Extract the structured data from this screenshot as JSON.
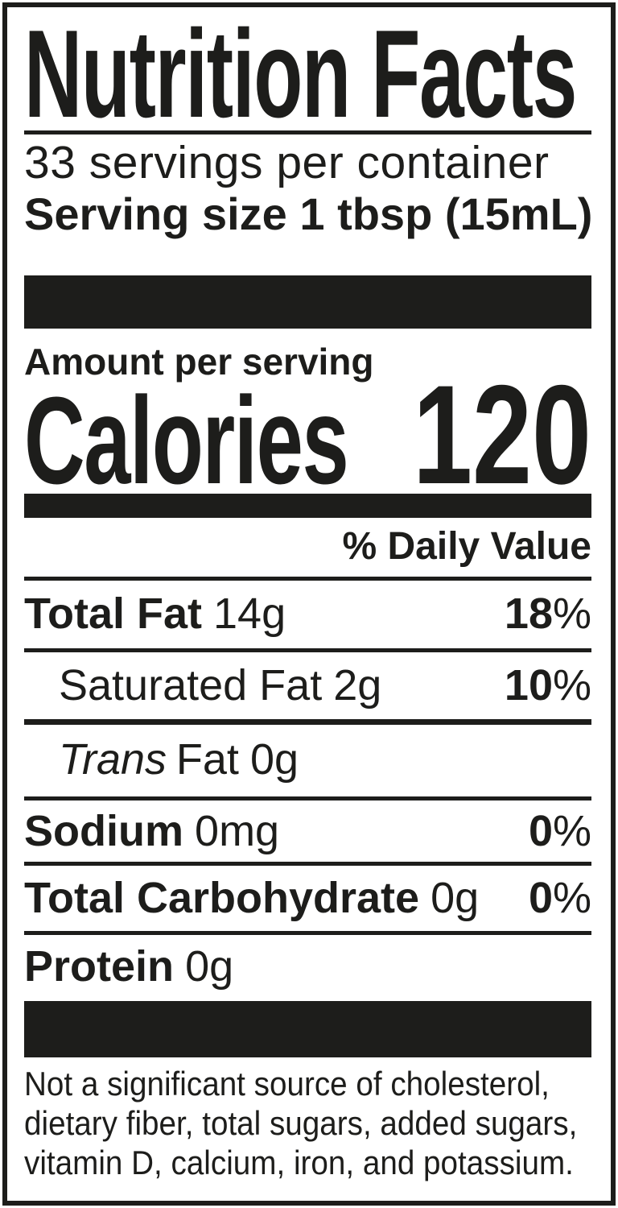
{
  "colors": {
    "ink": "#1d1d1b",
    "paper": "#ffffff"
  },
  "label": {
    "title": "Nutrition Facts",
    "servings_per_container": "33 servings per container",
    "serving_size": "Serving size 1 tbsp (15mL)",
    "amount_per_serving": "Amount per serving",
    "calories_label": "Calories",
    "calories_value": "120",
    "daily_value_header": "% Daily Value",
    "percent_sign": "%",
    "rows": [
      {
        "name": "Total Fat",
        "amount": "14g",
        "daily_value": "18"
      },
      {
        "name": "Saturated Fat",
        "amount": "2g",
        "daily_value": "10"
      },
      {
        "name_italic": "Trans",
        "name": "Fat",
        "amount": "0g"
      },
      {
        "name": "Sodium",
        "amount": "0mg",
        "daily_value": "0"
      },
      {
        "name": "Total Carbohydrate",
        "amount": "0g",
        "daily_value": "0"
      },
      {
        "name": "Protein",
        "amount": "0g"
      }
    ],
    "footnote_lines": [
      "Not a significant source of cholesterol,",
      "dietary fiber, total sugars, added sugars,",
      "vitamin D, calcium, iron, and potassium."
    ]
  }
}
